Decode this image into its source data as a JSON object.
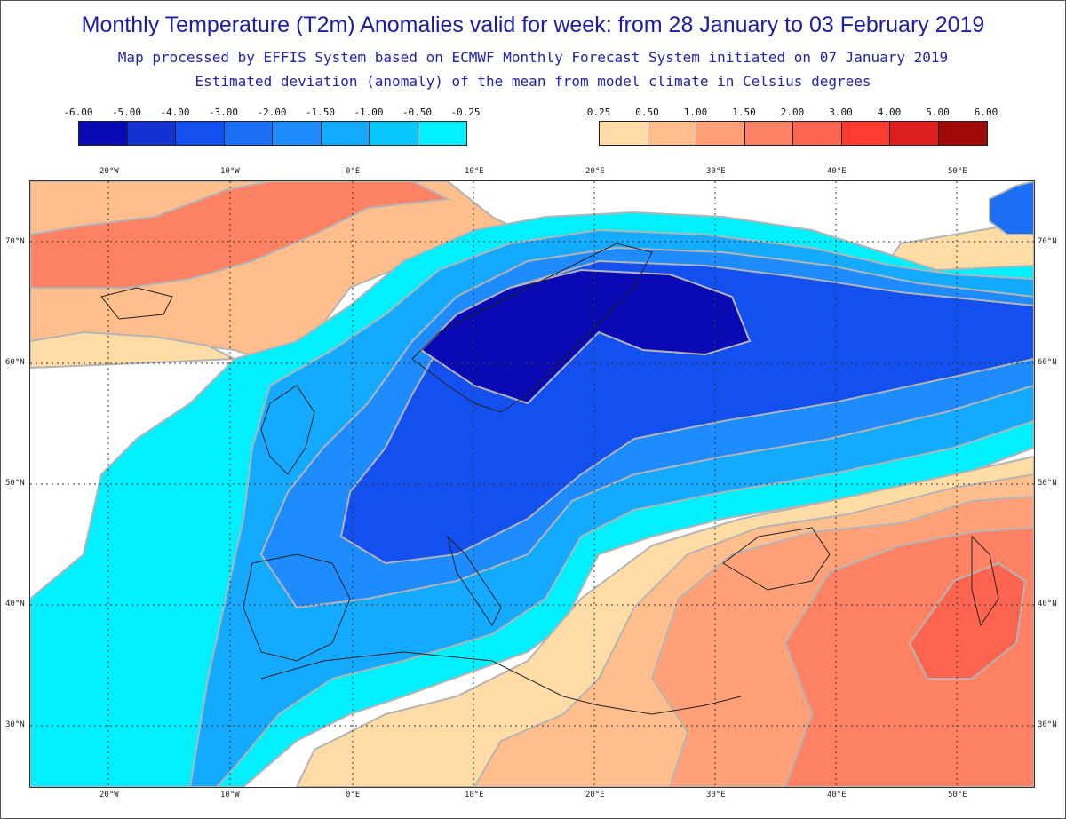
{
  "header": {
    "title": "Monthly Temperature (T2m) Anomalies valid for week: from 28 January to 03 February 2019",
    "line2": "Map processed by EFFIS System based on ECMWF Monthly Forecast System initiated on 07 January 2019",
    "line3": "Estimated deviation (anomaly) of the mean from model climate in Celsius degrees"
  },
  "legend_cold": {
    "labels": [
      "-6.00",
      "-5.00",
      "-4.00",
      "-3.00",
      "-2.00",
      "-1.50",
      "-1.00",
      "-0.50",
      "-0.25"
    ],
    "colors": [
      "#0a0ab4",
      "#1432d2",
      "#1450f0",
      "#1e6ef5",
      "#1e8cff",
      "#14aaff",
      "#0ac8ff",
      "#00f0ff"
    ]
  },
  "legend_warm": {
    "labels": [
      "0.25",
      "0.50",
      "1.00",
      "1.50",
      "2.00",
      "3.00",
      "4.00",
      "5.00",
      "6.00"
    ],
    "colors": [
      "#ffdca5",
      "#ffbe8c",
      "#ffa078",
      "#ff8264",
      "#ff6450",
      "#ff3c32",
      "#dc1e1e",
      "#a00a0a"
    ]
  },
  "axes": {
    "lon_top": [
      "20°W",
      "10°W",
      "0°E",
      "10°E",
      "20°E",
      "30°E",
      "40°E",
      "50°E"
    ],
    "lon_bottom": [
      "20°W",
      "10°W",
      "0°E",
      "10°E",
      "20°E",
      "30°E",
      "40°E",
      "50°E"
    ],
    "lat_left": [
      "70°N",
      "60°N",
      "50°N",
      "40°N",
      "30°N"
    ],
    "lat_right": [
      "70°N",
      "60°N",
      "50°N",
      "40°N",
      "30°N"
    ]
  }
}
